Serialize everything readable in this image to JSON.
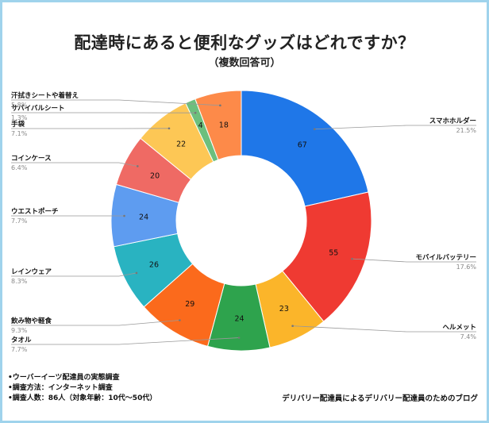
{
  "title": "配達時にあると便利なグッズはどれですか？",
  "subtitle": "（複数回答可）",
  "notes": [
    "•ウーバーイーツ配達員の実態調査",
    "•調査方法：インターネット調査",
    "•調査人数：86人（対象年齢：10代〜50代）"
  ],
  "credit": "デリバリー配達員によるデリバリー配達員のためのブログ",
  "chart_data": {
    "type": "pie",
    "donut": true,
    "categories": [
      "スマホホルダー",
      "モバイルバッテリー",
      "ヘルメット",
      "タオル",
      "飲み物や軽食",
      "レインウェア",
      "ウエストポーチ",
      "コインケース",
      "手袋",
      "サバイバルシート",
      "汗拭きシートや着替え"
    ],
    "values": [
      67,
      55,
      23,
      24,
      29,
      26,
      24,
      20,
      22,
      4,
      18
    ],
    "percent_labels": [
      "21.5%",
      "17.6%",
      "7.4%",
      "7.7%",
      "9.3%",
      "8.3%",
      "7.7%",
      "6.4%",
      "7.1%",
      "1.3%",
      "5.8%"
    ],
    "colors": [
      "#1f77e8",
      "#ef3a32",
      "#fbb52a",
      "#2ea34d",
      "#fb6a1c",
      "#29b3c1",
      "#5e9cf0",
      "#ef6a64",
      "#fdc755",
      "#6dbf7d",
      "#fd8a49"
    ],
    "start_angle": "12 o'clock",
    "direction": "clockwise",
    "legend": "none"
  }
}
